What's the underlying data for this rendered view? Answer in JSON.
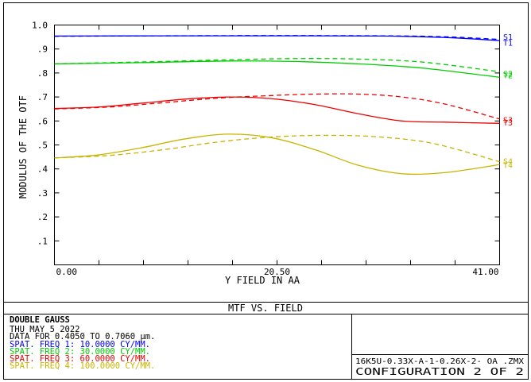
{
  "chart_data": {
    "type": "line",
    "xlabel": "Y FIELD IN  AA",
    "ylabel": "MODULUS OF THE OTF",
    "x_tick_labels": [
      "0.00",
      "20.50",
      "41.00"
    ],
    "y_tick_labels": [
      "1.0",
      ".9",
      ".8",
      ".7",
      ".6",
      ".5",
      ".4",
      ".3",
      ".2",
      ".1"
    ],
    "xlim": [
      0,
      41.0
    ],
    "ylim": [
      0,
      1.0
    ],
    "grid": false,
    "series": [
      {
        "name": "S1",
        "color": "#0000ff",
        "dash": false,
        "x": [
          0,
          10,
          20,
          30,
          36,
          41
        ],
        "y": [
          0.954,
          0.955,
          0.955,
          0.954,
          0.948,
          0.935
        ]
      },
      {
        "name": "T1",
        "color": "#0000ff",
        "dash": true,
        "x": [
          0,
          10,
          20,
          30,
          36,
          41
        ],
        "y": [
          0.953,
          0.955,
          0.956,
          0.955,
          0.951,
          0.94
        ]
      },
      {
        "name": "S2",
        "color": "#00cc00",
        "dash": false,
        "x": [
          0,
          8,
          16,
          22,
          28,
          34,
          41
        ],
        "y": [
          0.838,
          0.843,
          0.85,
          0.848,
          0.838,
          0.82,
          0.782
        ]
      },
      {
        "name": "T2",
        "color": "#00cc00",
        "dash": true,
        "x": [
          0,
          8,
          16,
          22,
          28,
          34,
          41
        ],
        "y": [
          0.838,
          0.846,
          0.855,
          0.86,
          0.858,
          0.845,
          0.805
        ]
      },
      {
        "name": "S3",
        "color": "#ee0000",
        "dash": false,
        "x": [
          0,
          4,
          8,
          12,
          16,
          20,
          24,
          28,
          32,
          36,
          41
        ],
        "y": [
          0.652,
          0.658,
          0.674,
          0.691,
          0.7,
          0.693,
          0.668,
          0.63,
          0.6,
          0.595,
          0.59
        ]
      },
      {
        "name": "T3",
        "color": "#ee0000",
        "dash": true,
        "x": [
          0,
          5,
          10,
          15,
          20,
          24,
          28,
          32,
          36,
          41
        ],
        "y": [
          0.65,
          0.658,
          0.676,
          0.695,
          0.706,
          0.712,
          0.712,
          0.7,
          0.67,
          0.608
        ]
      },
      {
        "name": "S4",
        "color": "#c8b400",
        "dash": false,
        "x": [
          0,
          4,
          8,
          12,
          16,
          20,
          24,
          28,
          32,
          36,
          41
        ],
        "y": [
          0.446,
          0.458,
          0.488,
          0.525,
          0.545,
          0.53,
          0.48,
          0.415,
          0.38,
          0.385,
          0.418
        ]
      },
      {
        "name": "T4",
        "color": "#c8b400",
        "dash": true,
        "x": [
          0,
          5,
          10,
          15,
          20,
          25,
          30,
          35,
          41
        ],
        "y": [
          0.446,
          0.456,
          0.48,
          0.512,
          0.533,
          0.54,
          0.533,
          0.505,
          0.43
        ]
      }
    ]
  },
  "footer": {
    "title": "MTF VS. FIELD",
    "lens_name": "DOUBLE GAUSS",
    "date": "THU MAY 5 2022",
    "data_range": "DATA FOR 0.4050 TO 0.7060 μm.",
    "freqs": [
      {
        "text": "SPAT. FREQ 1:   10.0000 CY/MM.",
        "color": "#0000ff"
      },
      {
        "text": "SPAT. FREQ 2:   30.0000 CY/MM.",
        "color": "#00cc00"
      },
      {
        "text": "SPAT. FREQ 3:   60.0000 CY/MM.",
        "color": "#ee0000"
      },
      {
        "text": "SPAT. FREQ 4:  100.0000 CY/MM.",
        "color": "#c8b400"
      }
    ],
    "file_name": "16K5U-0.33X-A-1-0.26X-2- OA   .ZMX",
    "configuration": "CONFIGURATION 2 OF 2"
  }
}
